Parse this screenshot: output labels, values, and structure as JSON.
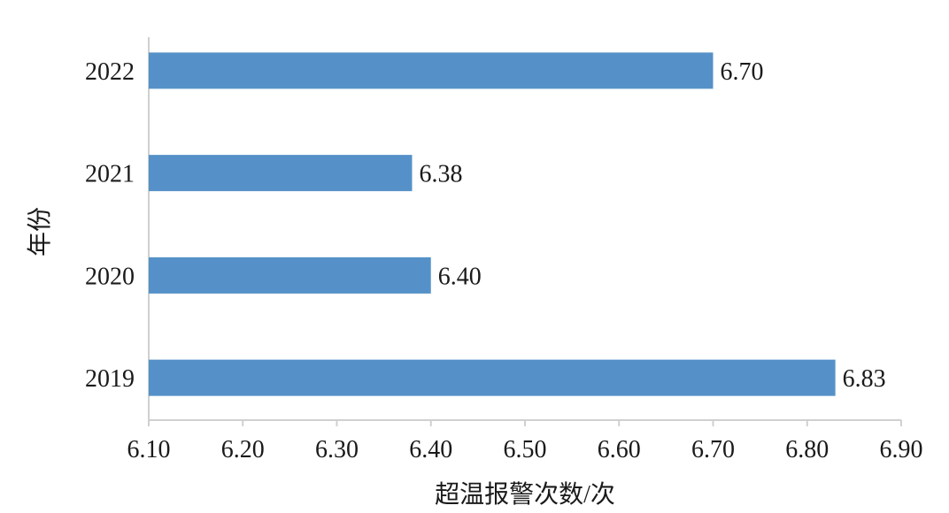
{
  "chart_data": {
    "type": "bar",
    "orientation": "horizontal",
    "categories": [
      "2022",
      "2021",
      "2020",
      "2019"
    ],
    "values": [
      6.7,
      6.38,
      6.4,
      6.83
    ],
    "value_labels": [
      "6.70",
      "6.38",
      "6.40",
      "6.83"
    ],
    "xlabel": "超温报警次数/次",
    "ylabel": "年份",
    "xlim": [
      6.1,
      6.9
    ],
    "xticks": [
      "6.10",
      "6.20",
      "6.30",
      "6.40",
      "6.50",
      "6.60",
      "6.70",
      "6.80",
      "6.90"
    ],
    "grid": false,
    "bar_color": "#5591c8"
  }
}
